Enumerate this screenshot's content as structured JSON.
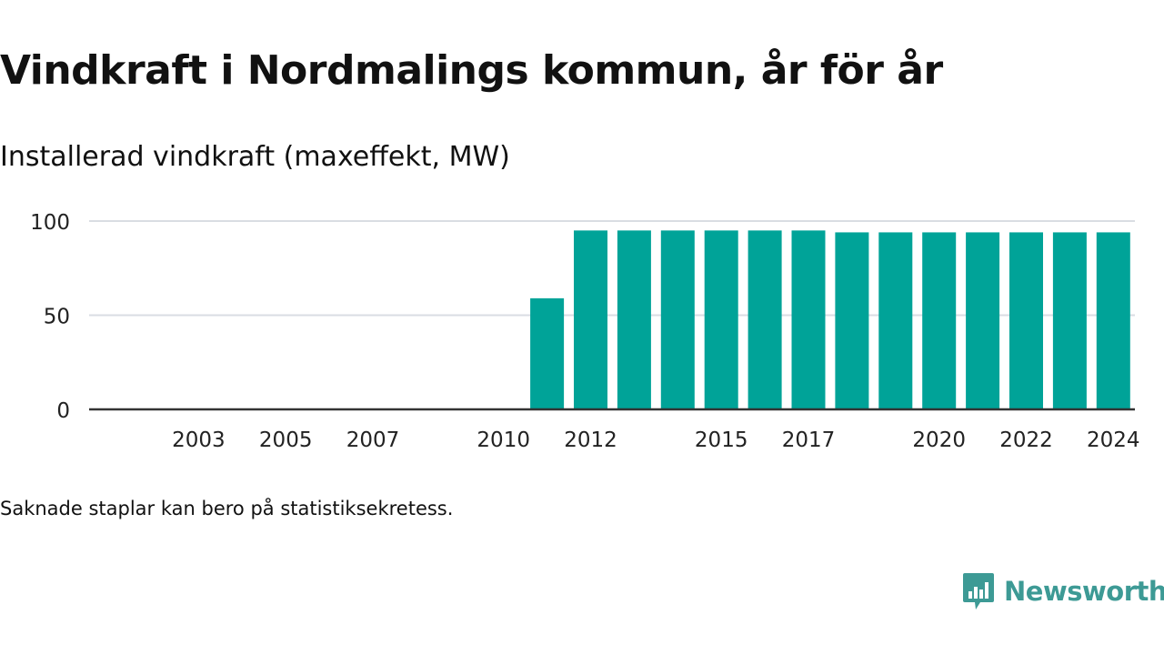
{
  "title": "Vindkraft i Nordmalings kommun, år för år",
  "subtitle": "Installerad vindkraft (maxeffekt, MW)",
  "note": "Saknade staplar kan bero på statistiksekretess.",
  "brand": {
    "name": "Newsworthy",
    "color": "#3d9a95"
  },
  "colors": {
    "bar": "#00a398",
    "grid": "#d9dde3",
    "axis": "#333333"
  },
  "chart_data": {
    "type": "bar",
    "title": "",
    "ylabel": "",
    "xlabel": "",
    "ylim": [
      0,
      100
    ],
    "yticks": [
      0,
      50,
      100
    ],
    "xtick_labels": [
      "2003",
      "2005",
      "2007",
      "2010",
      "2012",
      "2015",
      "2017",
      "2020",
      "2022",
      "2024"
    ],
    "categories": [
      "2002",
      "2003",
      "2004",
      "2005",
      "2006",
      "2007",
      "2008",
      "2009",
      "2010",
      "2011",
      "2012",
      "2013",
      "2014",
      "2015",
      "2016",
      "2017",
      "2018",
      "2019",
      "2020",
      "2021",
      "2022",
      "2023",
      "2024"
    ],
    "values": [
      0,
      0,
      0,
      0,
      0,
      0,
      0,
      0,
      0,
      59,
      95,
      95,
      95,
      95,
      95,
      95,
      94,
      94,
      94,
      94,
      94,
      94,
      94
    ],
    "grid": true
  }
}
